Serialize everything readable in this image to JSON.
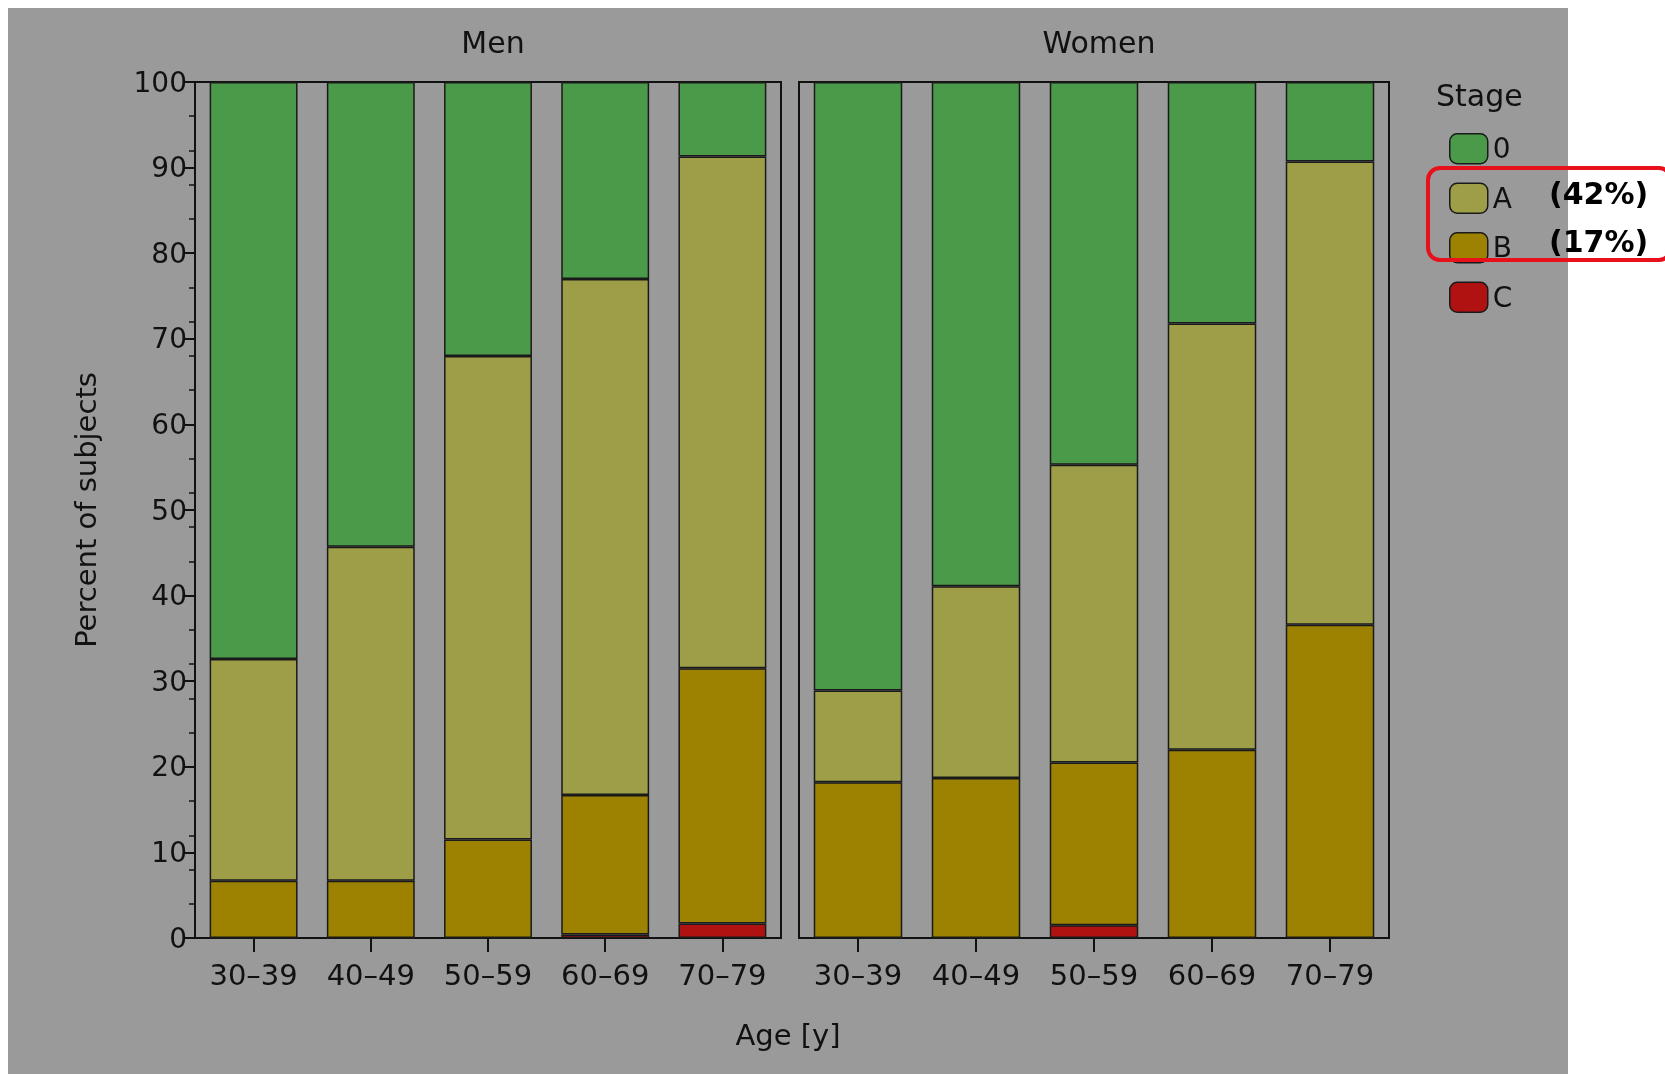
{
  "chart_data": [
    {
      "type": "bar",
      "title": "Men",
      "ylabel": "Percent of subjects",
      "xlabel": "Age [y]",
      "stacked": true,
      "categories": [
        "30–39",
        "40–49",
        "50–59",
        "60–69",
        "70–79"
      ],
      "ylim": [
        0,
        100
      ],
      "yticks": [
        0,
        10,
        20,
        30,
        40,
        50,
        60,
        70,
        80,
        90,
        100
      ],
      "grid": false,
      "series": [
        {
          "color": "#b01212",
          "values": [
            0,
            0,
            0,
            0.4,
            1.7
          ]
        },
        {
          "color": "#9c8200",
          "values": [
            6.7,
            6.7,
            11.5,
            16.3,
            29.8
          ]
        },
        {
          "color": "#9e9e48",
          "values": [
            25.9,
            39.0,
            56.5,
            60.3,
            59.8
          ]
        },
        {
          "color": "#4a9a4a",
          "values": [
            67.4,
            54.3,
            32.0,
            23.0,
            8.7
          ]
        }
      ]
    },
    {
      "type": "bar",
      "title": "Women",
      "stacked": true,
      "tick_labels": "x",
      "legend": "right",
      "legend_title": "Stage",
      "annotations": [
        "(42%)",
        "(17%)"
      ],
      "categories": [
        "30–39",
        "40–49",
        "50–59",
        "60–69",
        "70–79"
      ],
      "ylim": [
        0,
        100
      ],
      "yticks": [
        0,
        10,
        20,
        30,
        40,
        50,
        60,
        70,
        80,
        90,
        100
      ],
      "grid": false,
      "series": [
        {
          "name": "C",
          "color": "#b01212",
          "values": [
            0,
            0,
            1.5,
            0,
            0
          ]
        },
        {
          "name": "B",
          "color": "#9c8200",
          "values": [
            18.2,
            18.7,
            19.0,
            22.0,
            36.6
          ]
        },
        {
          "name": "A",
          "color": "#9e9e48",
          "values": [
            10.7,
            22.4,
            34.8,
            49.8,
            54.1
          ]
        },
        {
          "name": "0",
          "color": "#4a9a4a",
          "values": [
            71.1,
            58.9,
            44.7,
            28.2,
            9.3
          ]
        }
      ]
    }
  ]
}
